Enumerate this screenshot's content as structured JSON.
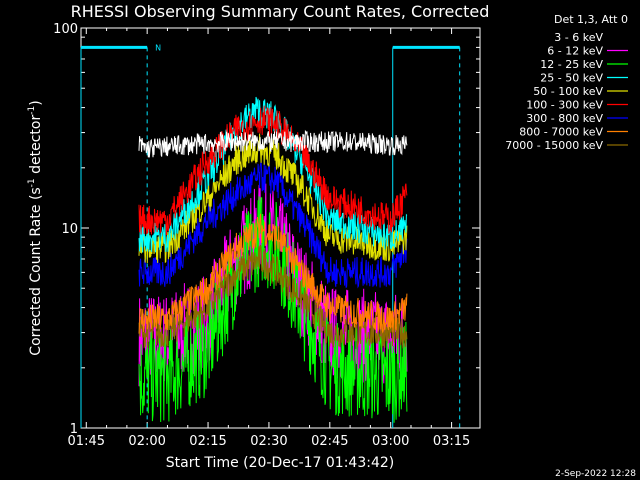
{
  "chart_data": {
    "type": "line",
    "title": "RHESSI Observing Summary Count Rates, Corrected",
    "xlabel": "Start Time (20-Dec-17 01:43:42)",
    "ylabel_main": "Corrected Count Rate (s",
    "ylabel_sup1": "-1",
    "ylabel_mid": " detector",
    "ylabel_sup2": "-1",
    "ylabel_end": ")",
    "y_scale": "log",
    "ylim": [
      1,
      100
    ],
    "y_ticks": [
      {
        "value": 1,
        "label": "1"
      },
      {
        "value": 10,
        "label": "10"
      },
      {
        "value": 100,
        "label": "100"
      }
    ],
    "x_range_minutes": [
      "01:43:42",
      "03:22:00"
    ],
    "x_ticks": [
      {
        "t": "01:45",
        "label": "01:45"
      },
      {
        "t": "02:00",
        "label": "02:00"
      },
      {
        "t": "02:15",
        "label": "02:15"
      },
      {
        "t": "02:30",
        "label": "02:30"
      },
      {
        "t": "02:45",
        "label": "02:45"
      },
      {
        "t": "03:00",
        "label": "03:00"
      },
      {
        "t": "03:15",
        "label": "03:15"
      }
    ],
    "data_interval": [
      "01:58:00",
      "03:04:00"
    ],
    "legend_title": "Det 1,3, Att 0",
    "legend_placement": "right",
    "series": [
      {
        "name": "3 - 6 keV",
        "color": "#000000",
        "display_color": "#ffffff",
        "points": [
          [
            "01:58",
            "26"
          ],
          [
            "02:00",
            "25"
          ],
          [
            "02:10",
            "26"
          ],
          [
            "02:20",
            "27"
          ],
          [
            "02:30",
            "27"
          ],
          [
            "02:40",
            "27"
          ],
          [
            "02:50",
            "27"
          ],
          [
            "03:00",
            "26"
          ],
          [
            "03:04",
            "26"
          ]
        ]
      },
      {
        "name": "6 - 12 keV",
        "color": "#ff00ff",
        "points": [
          [
            "01:58",
            "2.8"
          ],
          [
            "02:05",
            "2.8"
          ],
          [
            "02:15",
            "3.5"
          ],
          [
            "02:22",
            "7"
          ],
          [
            "02:28",
            "10"
          ],
          [
            "02:32",
            "9"
          ],
          [
            "02:38",
            "5"
          ],
          [
            "02:45",
            "3"
          ],
          [
            "03:00",
            "2.8"
          ],
          [
            "03:04",
            "3"
          ]
        ]
      },
      {
        "name": "12 - 25 keV",
        "color": "#00ff00",
        "points": [
          [
            "01:58",
            "1.8"
          ],
          [
            "02:05",
            "1.8"
          ],
          [
            "02:15",
            "2.5"
          ],
          [
            "02:22",
            "6"
          ],
          [
            "02:28",
            "9"
          ],
          [
            "02:32",
            "8"
          ],
          [
            "02:38",
            "4"
          ],
          [
            "02:45",
            "2"
          ],
          [
            "03:00",
            "1.8"
          ],
          [
            "03:04",
            "2"
          ]
        ]
      },
      {
        "name": "25 - 50 keV",
        "color": "#00ffff",
        "points": [
          [
            "01:58",
            "9"
          ],
          [
            "02:05",
            "9"
          ],
          [
            "02:15",
            "18"
          ],
          [
            "02:22",
            "32"
          ],
          [
            "02:27",
            "39"
          ],
          [
            "02:32",
            "35"
          ],
          [
            "02:38",
            "22"
          ],
          [
            "02:45",
            "11"
          ],
          [
            "03:00",
            "9"
          ],
          [
            "03:04",
            "10"
          ]
        ]
      },
      {
        "name": "50 - 100 keV",
        "color": "#e0e000",
        "points": [
          [
            "01:58",
            "8"
          ],
          [
            "02:05",
            "8"
          ],
          [
            "02:15",
            "14"
          ],
          [
            "02:22",
            "22"
          ],
          [
            "02:28",
            "25"
          ],
          [
            "02:32",
            "23"
          ],
          [
            "02:38",
            "16"
          ],
          [
            "02:45",
            "9"
          ],
          [
            "03:00",
            "8"
          ],
          [
            "03:04",
            "9"
          ]
        ]
      },
      {
        "name": "100 - 300 keV",
        "color": "#ff0000",
        "points": [
          [
            "01:58",
            "11"
          ],
          [
            "02:05",
            "11"
          ],
          [
            "02:15",
            "22"
          ],
          [
            "02:22",
            "31"
          ],
          [
            "02:28",
            "35"
          ],
          [
            "02:32",
            "33"
          ],
          [
            "02:38",
            "24"
          ],
          [
            "02:45",
            "14"
          ],
          [
            "03:00",
            "11"
          ],
          [
            "03:04",
            "15"
          ]
        ]
      },
      {
        "name": "300 - 800 keV",
        "color": "#0000ff",
        "points": [
          [
            "01:58",
            "6"
          ],
          [
            "02:05",
            "6"
          ],
          [
            "02:15",
            "11"
          ],
          [
            "02:22",
            "15"
          ],
          [
            "02:28",
            "18"
          ],
          [
            "02:32",
            "17"
          ],
          [
            "02:38",
            "11"
          ],
          [
            "02:45",
            "6"
          ],
          [
            "03:00",
            "6"
          ],
          [
            "03:04",
            "8"
          ]
        ]
      },
      {
        "name": "800 - 7000 keV",
        "color": "#ff8000",
        "points": [
          [
            "01:58",
            "3.5"
          ],
          [
            "02:05",
            "3.5"
          ],
          [
            "02:15",
            "5"
          ],
          [
            "02:22",
            "8"
          ],
          [
            "02:28",
            "10"
          ],
          [
            "02:32",
            "9"
          ],
          [
            "02:38",
            "6"
          ],
          [
            "02:45",
            "4"
          ],
          [
            "03:00",
            "3.5"
          ],
          [
            "03:04",
            "4"
          ]
        ]
      },
      {
        "name": "7000 - 15000 keV",
        "color": "#8b6a00",
        "points": [
          [
            "01:58",
            "3"
          ],
          [
            "02:05",
            "3"
          ],
          [
            "02:15",
            "4"
          ],
          [
            "02:22",
            "6"
          ],
          [
            "02:28",
            "7"
          ],
          [
            "02:32",
            "6"
          ],
          [
            "02:38",
            "4.5"
          ],
          [
            "02:45",
            "3"
          ],
          [
            "03:00",
            "3"
          ],
          [
            "03:04",
            "3"
          ]
        ]
      }
    ],
    "annotations": {
      "night_bars": [
        {
          "from": "01:43:42",
          "to": "02:00:00",
          "label": "N"
        },
        {
          "from": "03:00:30",
          "to": "03:17:00",
          "label": ""
        }
      ],
      "saa_dashes": [
        "02:00:00",
        "03:17:00"
      ],
      "eclipse_boundaries": [
        "01:43:42",
        "03:00:30"
      ]
    },
    "footer_date": "2-Sep-2022 12:28"
  }
}
